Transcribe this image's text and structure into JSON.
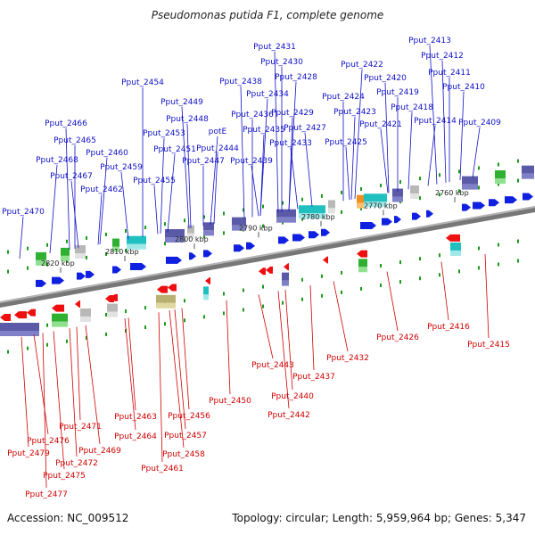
{
  "title": "Pseudomonas putida F1, complete genome",
  "footer": {
    "accession": "Accession: NC_009512",
    "topology": "Topology: circular; Length: 5,959,964 bp; Genes: 5,347"
  },
  "colors": {
    "forward_label": "#1010c8",
    "reverse_label": "#d00000",
    "forward_arrow": "#1020e0",
    "reverse_arrow": "#ee1010",
    "backbone": "#7a7a7a",
    "tick": "#1a9a1a"
  },
  "kbp_ticks": [
    "2760 kbp",
    "2770 kbp",
    "2780 kbp",
    "2790 kbp",
    "2800 kbp",
    "2810 kbp",
    "2820 kbp"
  ],
  "forward_genes": [
    "Pput_2409",
    "Pput_2410",
    "Pput_2411",
    "Pput_2412",
    "Pput_2413",
    "Pput_2414",
    "Pput_2418",
    "Pput_2419",
    "Pput_2420",
    "Pput_2421",
    "Pput_2422",
    "Pput_2423",
    "Pput_2424",
    "Pput_2425",
    "Pput_2427",
    "Pput_2428",
    "Pput_2429",
    "Pput_2430",
    "Pput_2431",
    "Pput_2433",
    "Pput_2434",
    "Pput_2435",
    "Pput_2436",
    "Pput_2438",
    "Pput_2439",
    "potE",
    "Pput_2444",
    "Pput_2447",
    "Pput_2448",
    "Pput_2449",
    "Pput_2451",
    "Pput_2453",
    "Pput_2454",
    "Pput_2455",
    "Pput_2459",
    "Pput_2460",
    "Pput_2462",
    "Pput_2465",
    "Pput_2466",
    "Pput_2467",
    "Pput_2468",
    "Pput_2470"
  ],
  "reverse_genes": [
    "Pput_2415",
    "Pput_2416",
    "Pput_2426",
    "Pput_2432",
    "Pput_2437",
    "Pput_2440",
    "Pput_2442",
    "Pput_2443",
    "Pput_2450",
    "Pput_2456",
    "Pput_2457",
    "Pput_2458",
    "Pput_2461",
    "Pput_2463",
    "Pput_2464",
    "Pput_2469",
    "Pput_2471",
    "Pput_2472",
    "Pput_2475",
    "Pput_2476",
    "Pput_2477",
    "Pput_2479"
  ]
}
